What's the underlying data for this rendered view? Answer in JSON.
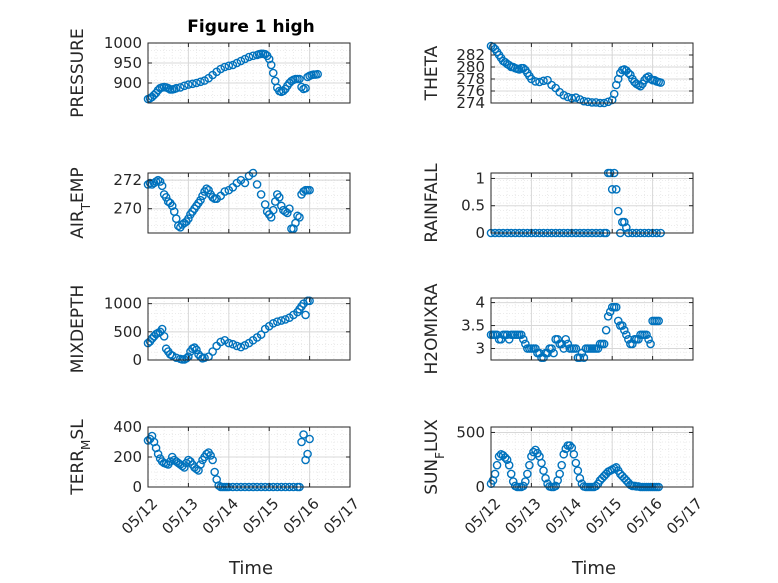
{
  "title": "Figure 1 high",
  "xlabel": "Time",
  "colors": {
    "marker": "#0072BD",
    "axis": "#262626",
    "grid": "#d8d8d8",
    "grid_minor": "#ebebeb"
  },
  "chart_data": [
    {
      "type": "scatter",
      "panel": "left-row-1",
      "ylabel_parts": [
        "PRESSURE"
      ],
      "xlim": [
        0,
        5
      ],
      "ylim": [
        850,
        1000
      ],
      "yticks": [
        900,
        950,
        1000
      ],
      "xticklabels": [],
      "x": [
        0.0,
        0.05,
        0.1,
        0.15,
        0.2,
        0.25,
        0.3,
        0.35,
        0.4,
        0.45,
        0.5,
        0.55,
        0.6,
        0.65,
        0.7,
        0.8,
        0.9,
        1.0,
        1.1,
        1.2,
        1.3,
        1.4,
        1.5,
        1.6,
        1.7,
        1.8,
        1.9,
        2.0,
        2.1,
        2.2,
        2.3,
        2.4,
        2.5,
        2.6,
        2.7,
        2.75,
        2.8,
        2.85,
        2.9,
        2.95,
        3.0,
        3.05,
        3.1,
        3.15,
        3.2,
        3.25,
        3.3,
        3.35,
        3.4,
        3.45,
        3.5,
        3.55,
        3.6,
        3.65,
        3.7,
        3.75,
        3.8,
        3.85,
        3.9,
        3.95,
        4.0,
        4.05,
        4.1,
        4.15,
        4.2
      ],
      "y": [
        860,
        862,
        865,
        870,
        875,
        882,
        887,
        889,
        890,
        889,
        887,
        884,
        884,
        885,
        887,
        889,
        893,
        896,
        898,
        900,
        903,
        906,
        912,
        920,
        928,
        935,
        940,
        943,
        945,
        950,
        955,
        960,
        965,
        968,
        970,
        972,
        973,
        973,
        972,
        968,
        960,
        945,
        925,
        905,
        888,
        880,
        878,
        880,
        885,
        893,
        900,
        905,
        908,
        910,
        910,
        910,
        890,
        885,
        887,
        915,
        918,
        920,
        921,
        921,
        922
      ]
    },
    {
      "type": "scatter",
      "panel": "right-row-1",
      "ylabel_parts": [
        "THETA"
      ],
      "xlim": [
        0,
        5
      ],
      "ylim": [
        274,
        284
      ],
      "yticks": [
        274,
        276,
        278,
        280,
        282
      ],
      "xticklabels": [],
      "x": [
        0.0,
        0.05,
        0.1,
        0.15,
        0.2,
        0.25,
        0.3,
        0.35,
        0.4,
        0.45,
        0.5,
        0.55,
        0.6,
        0.65,
        0.7,
        0.75,
        0.8,
        0.85,
        0.9,
        0.95,
        1.0,
        1.1,
        1.2,
        1.3,
        1.4,
        1.5,
        1.6,
        1.7,
        1.8,
        1.9,
        2.0,
        2.1,
        2.2,
        2.3,
        2.4,
        2.5,
        2.6,
        2.7,
        2.8,
        2.9,
        3.0,
        3.05,
        3.1,
        3.15,
        3.2,
        3.25,
        3.3,
        3.35,
        3.4,
        3.45,
        3.5,
        3.55,
        3.6,
        3.65,
        3.7,
        3.75,
        3.8,
        3.85,
        3.9,
        3.95,
        4.0,
        4.05,
        4.1,
        4.15,
        4.2
      ],
      "y": [
        283.5,
        283.3,
        283.0,
        282.5,
        282.0,
        281.5,
        281.0,
        280.8,
        280.5,
        280.3,
        280.0,
        280.0,
        279.8,
        279.7,
        279.6,
        279.8,
        279.8,
        279.5,
        279.0,
        278.5,
        278.0,
        277.6,
        277.5,
        277.7,
        277.8,
        277.0,
        276.5,
        275.8,
        275.3,
        275.0,
        274.8,
        274.9,
        274.6,
        274.3,
        274.2,
        274.1,
        274.1,
        274.0,
        274.0,
        274.2,
        274.5,
        275.5,
        277.0,
        278.0,
        279.0,
        279.5,
        279.6,
        279.4,
        279.0,
        278.7,
        278.0,
        277.5,
        277.2,
        277.0,
        276.8,
        277.2,
        277.8,
        278.2,
        278.4,
        278.0,
        277.8,
        277.8,
        277.6,
        277.5,
        277.4
      ]
    },
    {
      "type": "scatter",
      "panel": "left-row-2",
      "ylabel_parts": [
        "AIR",
        "T",
        "EMP"
      ],
      "xlim": [
        0,
        5
      ],
      "ylim": [
        268.3,
        272.5
      ],
      "yticks": [
        270,
        272
      ],
      "xticklabels": [],
      "x": [
        0.0,
        0.05,
        0.1,
        0.15,
        0.2,
        0.25,
        0.3,
        0.35,
        0.4,
        0.45,
        0.5,
        0.55,
        0.6,
        0.65,
        0.7,
        0.75,
        0.8,
        0.85,
        0.9,
        0.95,
        1.0,
        1.05,
        1.1,
        1.15,
        1.2,
        1.25,
        1.3,
        1.35,
        1.4,
        1.45,
        1.5,
        1.55,
        1.6,
        1.65,
        1.7,
        1.8,
        1.9,
        2.0,
        2.1,
        2.2,
        2.3,
        2.4,
        2.5,
        2.6,
        2.7,
        2.8,
        2.9,
        2.95,
        3.0,
        3.05,
        3.1,
        3.15,
        3.2,
        3.25,
        3.3,
        3.35,
        3.4,
        3.45,
        3.5,
        3.55,
        3.6,
        3.65,
        3.7,
        3.75,
        3.8,
        3.85,
        3.9,
        3.95,
        4.0
      ],
      "y": [
        271.7,
        271.8,
        271.7,
        271.8,
        271.9,
        272.0,
        271.9,
        271.6,
        271.0,
        270.8,
        270.5,
        270.4,
        270.2,
        269.8,
        269.3,
        268.8,
        268.7,
        268.9,
        269.0,
        269.1,
        269.3,
        269.6,
        269.8,
        270.0,
        270.2,
        270.4,
        270.6,
        270.9,
        271.2,
        271.4,
        271.3,
        271.0,
        270.8,
        270.7,
        270.7,
        270.9,
        271.2,
        271.3,
        271.5,
        271.8,
        272.0,
        271.8,
        272.3,
        272.5,
        271.7,
        271.0,
        270.3,
        269.8,
        269.6,
        269.4,
        269.9,
        270.5,
        271.0,
        270.8,
        270.2,
        269.9,
        269.8,
        269.7,
        270.0,
        268.6,
        268.6,
        269.0,
        269.5,
        269.4,
        271.0,
        271.2,
        271.3,
        271.3,
        271.3
      ]
    },
    {
      "type": "scatter",
      "panel": "right-row-2",
      "ylabel_parts": [
        "RAINFALL"
      ],
      "xlim": [
        0,
        5
      ],
      "ylim": [
        0,
        1.1
      ],
      "yticks": [
        0,
        0.5,
        1
      ],
      "yticklabels": [
        "0",
        "0.5",
        "1"
      ],
      "xticklabels": [],
      "x": [
        0.0,
        0.1,
        0.2,
        0.3,
        0.4,
        0.5,
        0.6,
        0.7,
        0.8,
        0.9,
        1.0,
        1.1,
        1.2,
        1.3,
        1.4,
        1.5,
        1.6,
        1.7,
        1.8,
        1.9,
        2.0,
        2.1,
        2.2,
        2.3,
        2.4,
        2.5,
        2.6,
        2.7,
        2.8,
        2.85,
        2.9,
        2.95,
        3.0,
        3.05,
        3.1,
        3.15,
        3.2,
        3.25,
        3.3,
        3.35,
        3.4,
        3.5,
        3.6,
        3.7,
        3.8,
        3.9,
        4.0,
        4.1,
        4.2
      ],
      "y": [
        0,
        0,
        0,
        0,
        0,
        0,
        0,
        0,
        0,
        0,
        0,
        0,
        0,
        0,
        0,
        0,
        0,
        0,
        0,
        0,
        0,
        0,
        0,
        0,
        0,
        0,
        0,
        0,
        0,
        0,
        1.1,
        1.1,
        0.8,
        1.1,
        0.8,
        0.4,
        0.0,
        0.2,
        0.2,
        0.1,
        0,
        0,
        0,
        0,
        0,
        0,
        0,
        0,
        0
      ]
    },
    {
      "type": "scatter",
      "panel": "left-row-3",
      "ylabel_parts": [
        "MIXDEPTH"
      ],
      "xlim": [
        0,
        5
      ],
      "ylim": [
        0,
        1100
      ],
      "yticks": [
        0,
        500,
        1000
      ],
      "xticklabels": [],
      "x": [
        0.0,
        0.05,
        0.1,
        0.15,
        0.2,
        0.25,
        0.3,
        0.35,
        0.4,
        0.45,
        0.5,
        0.55,
        0.6,
        0.7,
        0.8,
        0.85,
        0.9,
        0.95,
        1.0,
        1.05,
        1.1,
        1.15,
        1.2,
        1.25,
        1.3,
        1.35,
        1.4,
        1.5,
        1.6,
        1.7,
        1.8,
        1.9,
        2.0,
        2.1,
        2.2,
        2.3,
        2.4,
        2.5,
        2.6,
        2.7,
        2.8,
        2.9,
        3.0,
        3.1,
        3.2,
        3.3,
        3.4,
        3.5,
        3.6,
        3.7,
        3.75,
        3.8,
        3.85,
        3.9,
        3.95,
        4.0
      ],
      "y": [
        300,
        330,
        380,
        420,
        460,
        480,
        500,
        550,
        420,
        200,
        150,
        100,
        80,
        40,
        20,
        10,
        10,
        30,
        60,
        150,
        200,
        220,
        180,
        100,
        60,
        30,
        40,
        60,
        150,
        250,
        320,
        350,
        300,
        280,
        250,
        230,
        260,
        300,
        350,
        400,
        450,
        550,
        600,
        650,
        680,
        700,
        720,
        750,
        800,
        850,
        900,
        950,
        1000,
        800,
        1050,
        1050
      ]
    },
    {
      "type": "scatter",
      "panel": "right-row-3",
      "ylabel_parts": [
        "H2OMIXRA"
      ],
      "xlim": [
        0,
        5
      ],
      "ylim": [
        2.75,
        4.1
      ],
      "yticks": [
        3,
        3.5,
        4
      ],
      "yticklabels": [
        "3",
        "3.5",
        "4"
      ],
      "xticklabels": [],
      "x": [
        0.0,
        0.05,
        0.1,
        0.15,
        0.2,
        0.25,
        0.3,
        0.35,
        0.4,
        0.45,
        0.5,
        0.55,
        0.6,
        0.65,
        0.7,
        0.75,
        0.8,
        0.85,
        0.9,
        0.95,
        1.0,
        1.05,
        1.1,
        1.15,
        1.2,
        1.25,
        1.3,
        1.35,
        1.4,
        1.45,
        1.5,
        1.55,
        1.6,
        1.65,
        1.7,
        1.75,
        1.8,
        1.85,
        1.9,
        1.95,
        2.0,
        2.05,
        2.1,
        2.15,
        2.2,
        2.25,
        2.3,
        2.35,
        2.4,
        2.45,
        2.5,
        2.55,
        2.6,
        2.65,
        2.7,
        2.75,
        2.8,
        2.85,
        2.9,
        2.95,
        3.0,
        3.05,
        3.1,
        3.15,
        3.2,
        3.25,
        3.3,
        3.35,
        3.4,
        3.45,
        3.5,
        3.55,
        3.6,
        3.65,
        3.7,
        3.75,
        3.8,
        3.85,
        3.9,
        3.95,
        4.0,
        4.05,
        4.1,
        4.15
      ],
      "y": [
        3.3,
        3.3,
        3.3,
        3.3,
        3.2,
        3.2,
        3.3,
        3.3,
        3.3,
        3.2,
        3.3,
        3.3,
        3.3,
        3.3,
        3.3,
        3.3,
        3.2,
        3.1,
        3.0,
        3.0,
        3.0,
        3.0,
        3.0,
        2.9,
        2.9,
        2.8,
        2.8,
        2.9,
        2.9,
        3.0,
        3.0,
        2.9,
        3.2,
        3.2,
        3.1,
        3.1,
        3.0,
        3.2,
        3.1,
        3.0,
        3.0,
        3.0,
        3.0,
        2.8,
        2.8,
        2.9,
        2.8,
        3.0,
        3.0,
        3.0,
        3.0,
        3.0,
        3.0,
        3.0,
        3.1,
        3.1,
        3.1,
        3.4,
        3.7,
        3.8,
        3.9,
        3.9,
        3.9,
        3.6,
        3.5,
        3.5,
        3.4,
        3.3,
        3.2,
        3.1,
        3.1,
        3.2,
        3.2,
        3.2,
        3.3,
        3.3,
        3.3,
        3.3,
        3.2,
        3.1,
        3.6,
        3.6,
        3.6,
        3.6
      ]
    },
    {
      "type": "scatter",
      "panel": "left-row-4",
      "ylabel_parts": [
        "TERR",
        "M",
        "SL"
      ],
      "xlim": [
        0,
        5
      ],
      "ylim": [
        0,
        400
      ],
      "yticks": [
        0,
        200,
        400
      ],
      "xticks": [
        0,
        1,
        2,
        3,
        4,
        5
      ],
      "xticklabels": [
        "05/12",
        "05/13",
        "05/14",
        "05/15",
        "05/16",
        "05/17"
      ],
      "x": [
        0.0,
        0.05,
        0.1,
        0.15,
        0.2,
        0.25,
        0.3,
        0.35,
        0.4,
        0.45,
        0.5,
        0.55,
        0.6,
        0.65,
        0.7,
        0.75,
        0.8,
        0.85,
        0.9,
        0.95,
        1.0,
        1.05,
        1.1,
        1.15,
        1.2,
        1.25,
        1.3,
        1.35,
        1.4,
        1.45,
        1.5,
        1.55,
        1.6,
        1.65,
        1.7,
        1.75,
        1.8,
        1.85,
        1.9,
        1.95,
        2.0,
        2.1,
        2.2,
        2.3,
        2.4,
        2.5,
        2.6,
        2.7,
        2.8,
        2.9,
        3.0,
        3.1,
        3.2,
        3.3,
        3.4,
        3.5,
        3.6,
        3.7,
        3.75,
        3.8,
        3.85,
        3.9,
        3.95,
        4.0
      ],
      "y": [
        310,
        320,
        340,
        300,
        260,
        220,
        190,
        170,
        160,
        155,
        150,
        170,
        200,
        180,
        170,
        160,
        150,
        140,
        130,
        160,
        180,
        170,
        150,
        130,
        120,
        110,
        150,
        180,
        200,
        220,
        230,
        210,
        180,
        100,
        50,
        10,
        0,
        0,
        0,
        0,
        0,
        0,
        0,
        0,
        0,
        0,
        0,
        0,
        0,
        0,
        0,
        0,
        0,
        0,
        0,
        0,
        0,
        0,
        0,
        300,
        350,
        180,
        220,
        320
      ]
    },
    {
      "type": "scatter",
      "panel": "right-row-4",
      "ylabel_parts": [
        "SUN",
        "F",
        "LUX"
      ],
      "xlim": [
        0,
        5
      ],
      "ylim": [
        0,
        550
      ],
      "yticks": [
        0,
        500
      ],
      "xticks": [
        0,
        1,
        2,
        3,
        4,
        5
      ],
      "xticklabels": [
        "05/12",
        "05/13",
        "05/14",
        "05/15",
        "05/16",
        "05/17"
      ],
      "x": [
        0.0,
        0.05,
        0.1,
        0.15,
        0.2,
        0.25,
        0.3,
        0.35,
        0.4,
        0.45,
        0.5,
        0.55,
        0.6,
        0.65,
        0.7,
        0.75,
        0.8,
        0.85,
        0.9,
        0.95,
        1.0,
        1.05,
        1.1,
        1.15,
        1.2,
        1.25,
        1.3,
        1.35,
        1.4,
        1.45,
        1.5,
        1.55,
        1.6,
        1.65,
        1.7,
        1.75,
        1.8,
        1.85,
        1.9,
        1.95,
        2.0,
        2.05,
        2.1,
        2.15,
        2.2,
        2.25,
        2.3,
        2.35,
        2.4,
        2.45,
        2.5,
        2.55,
        2.6,
        2.65,
        2.7,
        2.75,
        2.8,
        2.85,
        2.9,
        2.95,
        3.0,
        3.05,
        3.1,
        3.15,
        3.2,
        3.25,
        3.3,
        3.35,
        3.4,
        3.45,
        3.5,
        3.55,
        3.6,
        3.65,
        3.7,
        3.75,
        3.8,
        3.85,
        3.9,
        3.95,
        4.0,
        4.05,
        4.1,
        4.15
      ],
      "y": [
        30,
        60,
        120,
        200,
        280,
        300,
        290,
        270,
        250,
        200,
        120,
        50,
        10,
        0,
        0,
        0,
        10,
        50,
        120,
        200,
        280,
        320,
        340,
        310,
        280,
        220,
        150,
        80,
        30,
        5,
        0,
        0,
        10,
        60,
        120,
        200,
        300,
        350,
        380,
        380,
        360,
        300,
        220,
        150,
        80,
        30,
        5,
        0,
        0,
        0,
        0,
        0,
        10,
        30,
        60,
        80,
        100,
        120,
        140,
        150,
        160,
        170,
        180,
        150,
        120,
        100,
        80,
        60,
        40,
        20,
        10,
        10,
        5,
        5,
        0,
        0,
        0,
        0,
        0,
        0,
        0,
        0,
        0,
        0
      ]
    }
  ]
}
